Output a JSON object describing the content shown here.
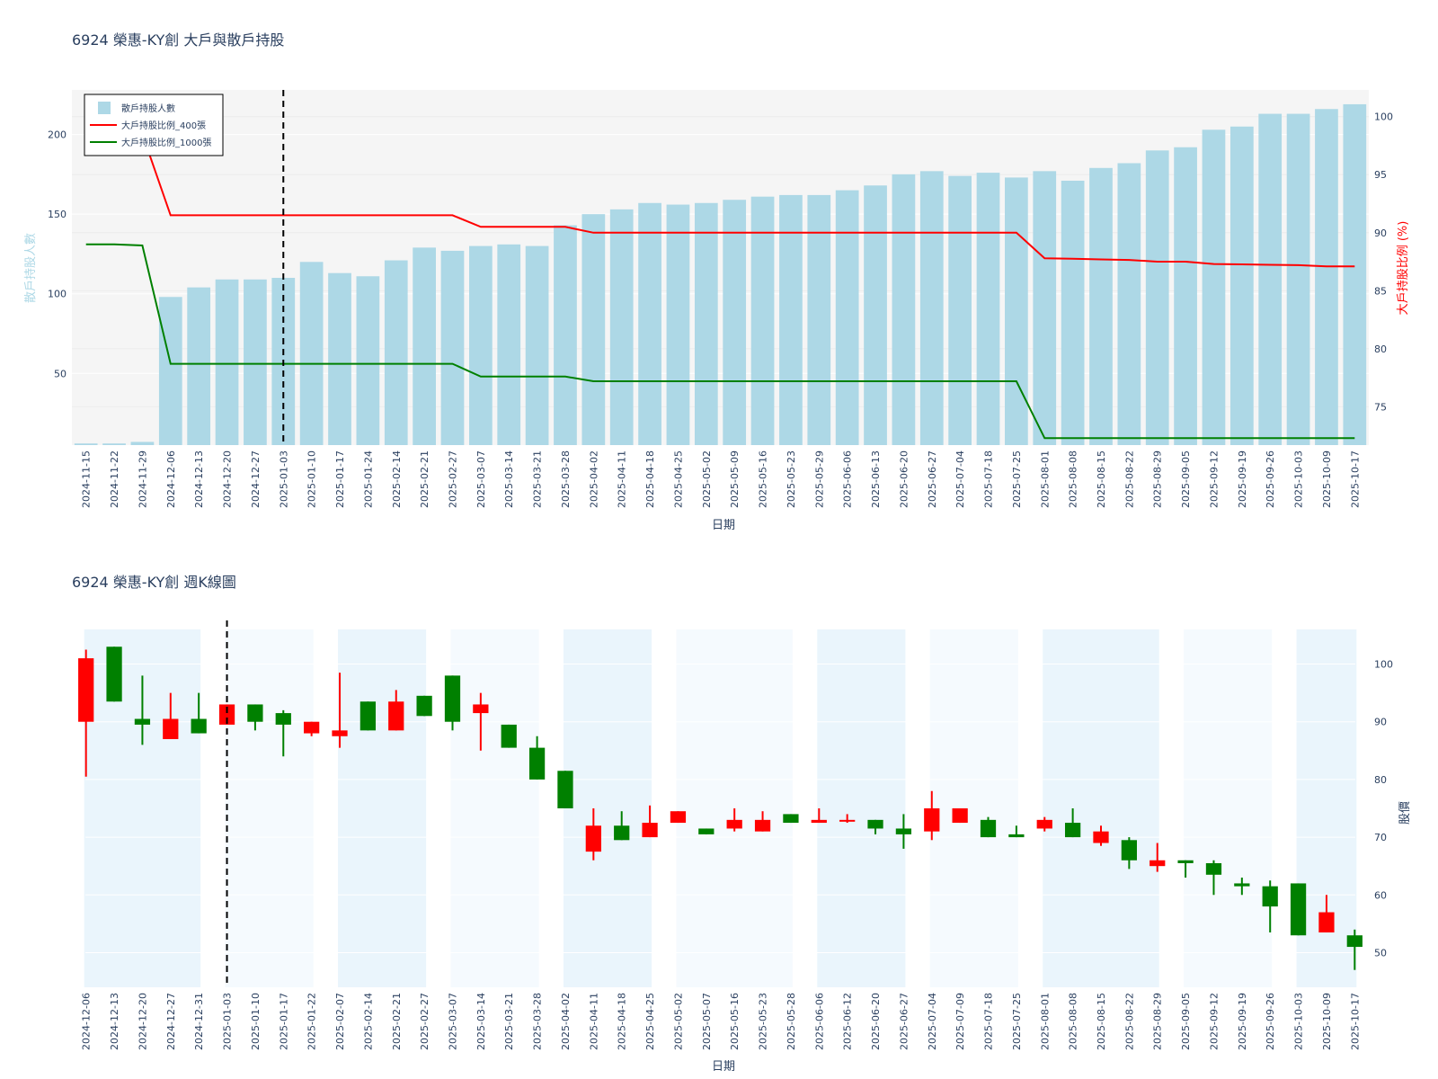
{
  "chart_data": [
    {
      "type": "bar+line",
      "title": "6924 榮惠-KY創 大戶與散戶持股",
      "xlabel": "日期",
      "ylabel_left": "散戶持股人數",
      "ylabel_right": "大戶持股比例 (%)",
      "ylim_left": [
        5,
        228
      ],
      "ylim_right": [
        71.7,
        102.3
      ],
      "yticks_left": [
        50,
        100,
        150,
        200
      ],
      "yticks_right": [
        75,
        80,
        85,
        90,
        95,
        100
      ],
      "legend_position": "top-left",
      "marker_date": "2025-01-03",
      "categories": [
        "2024-11-15",
        "2024-11-22",
        "2024-11-29",
        "2024-12-06",
        "2024-12-13",
        "2024-12-20",
        "2024-12-27",
        "2025-01-03",
        "2025-01-10",
        "2025-01-17",
        "2025-01-24",
        "2025-02-14",
        "2025-02-21",
        "2025-02-27",
        "2025-03-07",
        "2025-03-14",
        "2025-03-21",
        "2025-03-28",
        "2025-04-02",
        "2025-04-11",
        "2025-04-18",
        "2025-04-25",
        "2025-05-02",
        "2025-05-09",
        "2025-05-16",
        "2025-05-23",
        "2025-05-29",
        "2025-06-06",
        "2025-06-13",
        "2025-06-20",
        "2025-06-27",
        "2025-07-04",
        "2025-07-18",
        "2025-07-25",
        "2025-08-01",
        "2025-08-08",
        "2025-08-15",
        "2025-08-22",
        "2025-08-29",
        "2025-09-05",
        "2025-09-12",
        "2025-09-19",
        "2025-09-26",
        "2025-10-03",
        "2025-10-09",
        "2025-10-17"
      ],
      "series": [
        {
          "name": "散戶持股人數",
          "kind": "bar",
          "axis": "left",
          "color": "#add8e6",
          "values": [
            6,
            6,
            7,
            98,
            104,
            109,
            109,
            110,
            120,
            113,
            111,
            121,
            129,
            127,
            130,
            131,
            130,
            143,
            150,
            153,
            157,
            156,
            157,
            159,
            161,
            162,
            162,
            165,
            168,
            175,
            177,
            174,
            176,
            173,
            177,
            171,
            179,
            182,
            190,
            192,
            203,
            205,
            213,
            213,
            216,
            219
          ]
        },
        {
          "name": "大戶持股比例_400張",
          "kind": "line",
          "axis": "right",
          "color": "#ff0000",
          "values": [
            null,
            null,
            98.5,
            91.5,
            91.5,
            91.5,
            91.5,
            91.5,
            91.5,
            91.5,
            91.5,
            91.5,
            91.5,
            91.5,
            90.5,
            90.5,
            90.5,
            90.5,
            90.0,
            90.0,
            90.0,
            90.0,
            90.0,
            90.0,
            90.0,
            90.0,
            90.0,
            90.0,
            90.0,
            90.0,
            90.0,
            90.0,
            90.0,
            90.0,
            87.8,
            87.75,
            87.7,
            87.65,
            87.5,
            87.5,
            87.3,
            87.27,
            87.23,
            87.2,
            87.1,
            87.1
          ]
        },
        {
          "name": "大戶持股比例_1000張",
          "kind": "line",
          "axis": "right",
          "color": "#008000",
          "values": [
            89.0,
            89.0,
            88.9,
            78.7,
            78.7,
            78.7,
            78.7,
            78.7,
            78.7,
            78.7,
            78.7,
            78.7,
            78.7,
            78.7,
            77.6,
            77.6,
            77.6,
            77.6,
            77.2,
            77.2,
            77.2,
            77.2,
            77.2,
            77.2,
            77.2,
            77.2,
            77.2,
            77.2,
            77.2,
            77.2,
            77.2,
            77.2,
            77.2,
            77.2,
            72.3,
            72.3,
            72.3,
            72.3,
            72.3,
            72.3,
            72.3,
            72.3,
            72.3,
            72.3,
            72.3,
            72.3
          ]
        }
      ]
    },
    {
      "type": "candlestick",
      "title": "6924 榮惠-KY創 週K線圖",
      "xlabel": "日期",
      "ylabel": "股價",
      "ylim": [
        44,
        106
      ],
      "yticks": [
        50,
        60,
        70,
        80,
        90,
        100
      ],
      "marker_date": "2025-01-03",
      "up_color": "#ff0000",
      "down_color": "#008000",
      "categories": [
        "2024-12-06",
        "2024-12-13",
        "2024-12-20",
        "2024-12-27",
        "2024-12-31",
        "2025-01-03",
        "2025-01-10",
        "2025-01-17",
        "2025-01-22",
        "2025-02-07",
        "2025-02-14",
        "2025-02-21",
        "2025-02-27",
        "2025-03-07",
        "2025-03-14",
        "2025-03-21",
        "2025-03-28",
        "2025-04-02",
        "2025-04-11",
        "2025-04-18",
        "2025-04-25",
        "2025-05-02",
        "2025-05-07",
        "2025-05-16",
        "2025-05-23",
        "2025-05-28",
        "2025-06-06",
        "2025-06-12",
        "2025-06-20",
        "2025-06-27",
        "2025-07-04",
        "2025-07-09",
        "2025-07-18",
        "2025-07-25",
        "2025-08-01",
        "2025-08-08",
        "2025-08-15",
        "2025-08-22",
        "2025-08-29",
        "2025-09-05",
        "2025-09-12",
        "2025-09-19",
        "2025-09-26",
        "2025-10-03",
        "2025-10-09",
        "2025-10-17"
      ],
      "candles": [
        {
          "o": 90.0,
          "h": 102.5,
          "l": 80.5,
          "c": 101.0
        },
        {
          "o": 103.0,
          "h": 103.0,
          "l": 93.5,
          "c": 93.5
        },
        {
          "o": 90.5,
          "h": 98.0,
          "l": 86.0,
          "c": 89.5
        },
        {
          "o": 87.0,
          "h": 95.0,
          "l": 87.0,
          "c": 90.5
        },
        {
          "o": 90.5,
          "h": 95.0,
          "l": 88.0,
          "c": 88.0
        },
        {
          "o": 89.5,
          "h": 93.0,
          "l": 89.5,
          "c": 93.0
        },
        {
          "o": 93.0,
          "h": 93.0,
          "l": 88.5,
          "c": 90.0
        },
        {
          "o": 91.5,
          "h": 92.0,
          "l": 84.0,
          "c": 89.5
        },
        {
          "o": 88.0,
          "h": 90.0,
          "l": 87.5,
          "c": 90.0
        },
        {
          "o": 87.5,
          "h": 98.5,
          "l": 85.5,
          "c": 88.5
        },
        {
          "o": 93.5,
          "h": 93.5,
          "l": 88.5,
          "c": 88.5
        },
        {
          "o": 88.5,
          "h": 95.5,
          "l": 88.5,
          "c": 93.5
        },
        {
          "o": 94.5,
          "h": 94.5,
          "l": 91.0,
          "c": 91.0
        },
        {
          "o": 98.0,
          "h": 98.0,
          "l": 88.5,
          "c": 90.0
        },
        {
          "o": 91.5,
          "h": 95.0,
          "l": 85.0,
          "c": 93.0
        },
        {
          "o": 89.5,
          "h": 89.5,
          "l": 85.5,
          "c": 85.5
        },
        {
          "o": 85.5,
          "h": 87.5,
          "l": 80.0,
          "c": 80.0
        },
        {
          "o": 81.5,
          "h": 81.5,
          "l": 75.0,
          "c": 75.0
        },
        {
          "o": 67.5,
          "h": 75.0,
          "l": 66.0,
          "c": 72.0
        },
        {
          "o": 72.0,
          "h": 74.5,
          "l": 69.5,
          "c": 69.5
        },
        {
          "o": 70.0,
          "h": 75.5,
          "l": 70.0,
          "c": 72.5
        },
        {
          "o": 72.5,
          "h": 74.5,
          "l": 72.5,
          "c": 74.5
        },
        {
          "o": 71.5,
          "h": 71.5,
          "l": 70.5,
          "c": 70.5
        },
        {
          "o": 71.5,
          "h": 75.0,
          "l": 71.0,
          "c": 73.0
        },
        {
          "o": 71.0,
          "h": 74.5,
          "l": 71.0,
          "c": 73.0
        },
        {
          "o": 74.0,
          "h": 74.0,
          "l": 72.5,
          "c": 72.5
        },
        {
          "o": 72.5,
          "h": 75.0,
          "l": 72.5,
          "c": 73.0
        },
        {
          "o": 72.8,
          "h": 74.0,
          "l": 72.5,
          "c": 73.0
        },
        {
          "o": 73.0,
          "h": 73.0,
          "l": 70.5,
          "c": 71.5
        },
        {
          "o": 71.5,
          "h": 74.0,
          "l": 68.0,
          "c": 70.5
        },
        {
          "o": 71.0,
          "h": 78.0,
          "l": 69.5,
          "c": 75.0
        },
        {
          "o": 72.5,
          "h": 75.0,
          "l": 72.5,
          "c": 75.0
        },
        {
          "o": 73.0,
          "h": 73.5,
          "l": 70.0,
          "c": 70.0
        },
        {
          "o": 70.5,
          "h": 72.0,
          "l": 70.0,
          "c": 70.0
        },
        {
          "o": 71.5,
          "h": 73.5,
          "l": 71.0,
          "c": 73.0
        },
        {
          "o": 72.5,
          "h": 75.0,
          "l": 70.0,
          "c": 70.0
        },
        {
          "o": 69.0,
          "h": 72.0,
          "l": 68.5,
          "c": 71.0
        },
        {
          "o": 69.5,
          "h": 70.0,
          "l": 64.5,
          "c": 66.0
        },
        {
          "o": 65.0,
          "h": 69.0,
          "l": 64.0,
          "c": 66.0
        },
        {
          "o": 66.0,
          "h": 66.0,
          "l": 63.0,
          "c": 65.5
        },
        {
          "o": 65.5,
          "h": 66.0,
          "l": 60.0,
          "c": 63.5
        },
        {
          "o": 62.0,
          "h": 63.0,
          "l": 60.0,
          "c": 61.5
        },
        {
          "o": 61.5,
          "h": 62.5,
          "l": 53.5,
          "c": 58.0
        },
        {
          "o": 62.0,
          "h": 62.0,
          "l": 53.0,
          "c": 53.0
        },
        {
          "o": 53.5,
          "h": 60.0,
          "l": 53.5,
          "c": 57.0
        },
        {
          "o": 53.0,
          "h": 54.0,
          "l": 47.0,
          "c": 51.0
        }
      ]
    }
  ]
}
